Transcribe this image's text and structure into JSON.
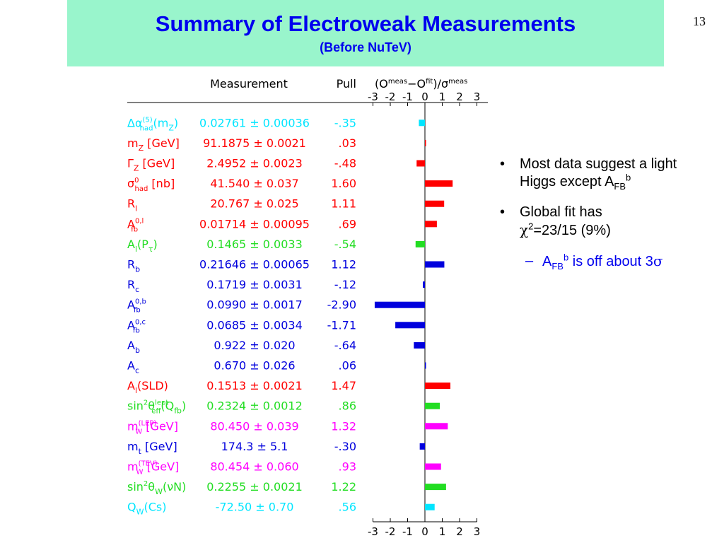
{
  "slide": {
    "title": "Summary of Electroweak Measurements",
    "subtitle": "(Before NuTeV)",
    "number": "13"
  },
  "colors": {
    "title_band": "#99f5cc",
    "title_text": "#0000ee",
    "cyan": "#00e5ff",
    "red": "#ff0000",
    "green": "#22dd22",
    "blue": "#0000dd",
    "magenta": "#ff00ff"
  },
  "bullets": [
    {
      "marker": "•",
      "text": "Most data suggest a light Higgs except A",
      "sub": "FB",
      "sup": "b"
    },
    {
      "marker": "•",
      "line1": "Global fit has",
      "chi": "χ",
      "chi_sup": "2",
      "line2_rest": "=23/15 (9%)"
    }
  ],
  "sub_bullet": {
    "marker": "–",
    "a": "A",
    "sub": "FB",
    "sup": "b",
    "rest": " is off about 3",
    "sigma": "σ"
  },
  "chart_data": {
    "type": "bar",
    "orientation": "horizontal",
    "column_headers": {
      "measurement": "Measurement",
      "pull": "Pull",
      "axis_title": {
        "open": "(O",
        "meas": "meas",
        "minus": "−O",
        "fit": "fit",
        "close": ")/σ",
        "meas2": "meas"
      }
    },
    "xlim": [
      -3,
      3
    ],
    "ticks": [
      "-3",
      "-2",
      "-1",
      "0",
      "1",
      "2",
      "3"
    ],
    "rows": [
      {
        "name": "Δα",
        "label_sup": "(5)",
        "label_sub": "had",
        "label_tail": "(m",
        "tail_sub": "Z",
        "tail_end": ")",
        "measurement": "0.02761 ± 0.00036",
        "pull_label": "-.35",
        "pull": -0.35,
        "color": "#00e5ff"
      },
      {
        "name": "m",
        "label_sub": "Z",
        "label_tail": " [GeV]",
        "measurement": "91.1875 ± 0.0021",
        "pull_label": ".03",
        "pull": 0.03,
        "color": "#ff0000"
      },
      {
        "name": "Γ",
        "label_sub": "Z",
        "label_tail": " [GeV]",
        "measurement": "2.4952 ± 0.0023",
        "pull_label": "-.48",
        "pull": -0.48,
        "color": "#ff0000"
      },
      {
        "name": "σ",
        "label_sup": "0",
        "label_sub": "had",
        "label_tail": " [nb]",
        "measurement": "41.540 ± 0.037",
        "pull_label": "1.60",
        "pull": 1.6,
        "color": "#ff0000"
      },
      {
        "name": "R",
        "label_sub": "l",
        "measurement": "20.767 ± 0.025",
        "pull_label": "1.11",
        "pull": 1.11,
        "color": "#ff0000"
      },
      {
        "name": "A",
        "label_sup": "0,l",
        "label_sub": "fb",
        "measurement": "0.01714 ± 0.00095",
        "pull_label": ".69",
        "pull": 0.69,
        "color": "#ff0000"
      },
      {
        "name": "A",
        "label_sub": "l",
        "label_tail": "(P",
        "tail_sub": "τ",
        "tail_end": ")",
        "measurement": "0.1465 ± 0.0033",
        "pull_label": "-.54",
        "pull": -0.54,
        "color": "#22dd22"
      },
      {
        "name": "R",
        "label_sub": "b",
        "measurement": "0.21646 ± 0.00065",
        "pull_label": "1.12",
        "pull": 1.12,
        "color": "#0000dd"
      },
      {
        "name": "R",
        "label_sub": "c",
        "measurement": "0.1719 ± 0.0031",
        "pull_label": "-.12",
        "pull": -0.12,
        "color": "#0000dd"
      },
      {
        "name": "A",
        "label_sup": "0,b",
        "label_sub": "fb",
        "measurement": "0.0990 ± 0.0017",
        "pull_label": "-2.90",
        "pull": -2.9,
        "color": "#0000dd"
      },
      {
        "name": "A",
        "label_sup": "0,c",
        "label_sub": "fb",
        "measurement": "0.0685 ± 0.0034",
        "pull_label": "-1.71",
        "pull": -1.71,
        "color": "#0000dd"
      },
      {
        "name": "A",
        "label_sub": "b",
        "measurement": "0.922 ± 0.020",
        "pull_label": "-.64",
        "pull": -0.64,
        "color": "#0000dd"
      },
      {
        "name": "A",
        "label_sub": "c",
        "measurement": "0.670 ± 0.026",
        "pull_label": ".06",
        "pull": 0.06,
        "color": "#0000dd"
      },
      {
        "name": "A",
        "label_sub": "l",
        "label_tail": "(SLD)",
        "measurement": "0.1513 ± 0.0021",
        "pull_label": "1.47",
        "pull": 1.47,
        "color": "#ff0000"
      },
      {
        "name": "sin",
        "label_sup": "2",
        "label_mid": "θ",
        "mid_sup": "lept",
        "mid_sub": "eff",
        "label_tail": "(Q",
        "tail_sub": "fb",
        "tail_end": ")",
        "measurement": "0.2324 ± 0.0012",
        "pull_label": ".86",
        "pull": 0.86,
        "color": "#22dd22"
      },
      {
        "name": "m",
        "label_sup": "(LEP)",
        "label_sub": "W",
        "label_tail": " [GeV]",
        "measurement": "80.450 ± 0.039",
        "pull_label": "1.32",
        "pull": 1.32,
        "color": "#ff00ff"
      },
      {
        "name": "m",
        "label_sub": "t",
        "label_tail": " [GeV]",
        "measurement": "174.3 ± 5.1",
        "pull_label": "-.30",
        "pull": -0.3,
        "color": "#0000dd"
      },
      {
        "name": "m",
        "label_sup": "(TEV)",
        "label_sub": "W",
        "label_tail": " [GeV]",
        "measurement": "80.454 ± 0.060",
        "pull_label": ".93",
        "pull": 0.93,
        "color": "#ff00ff"
      },
      {
        "name": "sin",
        "label_sup": "2",
        "label_mid": "θ",
        "mid_sub": "W",
        "label_tail": "(νN)",
        "measurement": "0.2255 ± 0.0021",
        "pull_label": "1.22",
        "pull": 1.22,
        "color": "#22dd22"
      },
      {
        "name": "Q",
        "label_sub": "W",
        "label_tail": "(Cs)",
        "measurement": "-72.50 ± 0.70",
        "pull_label": ".56",
        "pull": 0.56,
        "color": "#00e5ff"
      }
    ]
  }
}
